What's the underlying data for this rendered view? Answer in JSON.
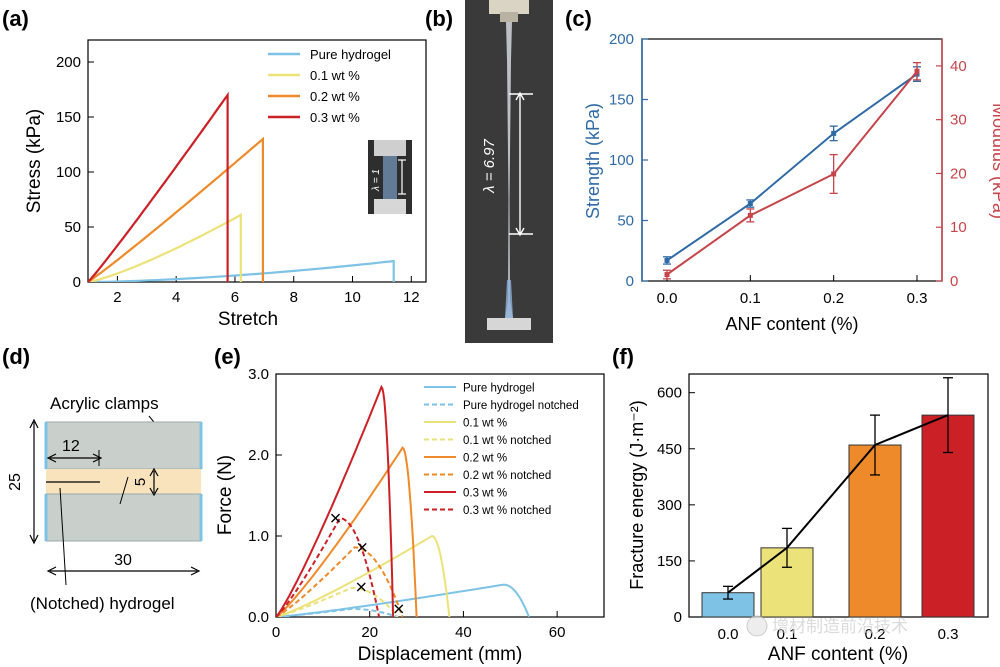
{
  "colors": {
    "pure": "#7ec3e6",
    "wt01": "#ece27a",
    "wt02": "#ef8a2a",
    "wt03": "#cc2027",
    "strength": "#2f6aa6",
    "modulus": "#c6454b",
    "clamp": "#c9d0cc",
    "gel": "#f8e3bd"
  },
  "panels": {
    "a": {
      "label": "(a)",
      "xlabel": "Stretch",
      "ylabel": "Stress (kPa)",
      "xticks": [
        "2",
        "4",
        "6",
        "8",
        "10",
        "12"
      ],
      "yticks": [
        "0",
        "50",
        "100",
        "150",
        "200"
      ],
      "legend": [
        "Pure hydrogel",
        "0.1 wt %",
        "0.2 wt %",
        "0.3 wt %"
      ],
      "inset_text": "λ = 1"
    },
    "b": {
      "label": "(b)",
      "stretch_text": "λ = 6.97"
    },
    "c": {
      "label": "(c)",
      "xlabel": "ANF content (%)",
      "ylabel_left": "Strength (kPa)",
      "ylabel_right": "Modulus (kPa)",
      "xticks": [
        "0.0",
        "0.1",
        "0.2",
        "0.3"
      ],
      "yticks_left": [
        "0",
        "50",
        "100",
        "150",
        "200"
      ],
      "yticks_right": [
        "0",
        "10",
        "20",
        "30",
        "40"
      ]
    },
    "d": {
      "label": "(d)",
      "clamp_label": "Acrylic clamps",
      "gel_label": "(Notched) hydrogel",
      "dim_25": "25",
      "dim_12": "12",
      "dim_5": "5",
      "dim_30": "30"
    },
    "e": {
      "label": "(e)",
      "xlabel": "Displacement (mm)",
      "ylabel": "Force (N)",
      "xticks": [
        "0",
        "20",
        "40",
        "60"
      ],
      "yticks": [
        "0.0",
        "1.0",
        "2.0",
        "3.0"
      ],
      "legend": [
        "Pure hydrogel",
        "Pure hydrogel notched",
        "0.1 wt %",
        "0.1 wt % notched",
        "0.2 wt %",
        "0.2 wt % notched",
        "0.3 wt %",
        "0.3 wt % notched"
      ]
    },
    "f": {
      "label": "(f)",
      "xlabel": "ANF content (%)",
      "ylabel": "Fracture energy (J·m⁻²)",
      "xticks": [
        "0.0",
        "0.1",
        "0.2",
        "0.3"
      ],
      "yticks": [
        "0",
        "150",
        "300",
        "450",
        "600"
      ],
      "watermark": "增材制造前沿技术"
    }
  },
  "chart_data": [
    {
      "panel": "a",
      "type": "line",
      "xlabel": "Stretch",
      "ylabel": "Stress (kPa)",
      "xlim": [
        1,
        12.5
      ],
      "ylim": [
        0,
        220
      ],
      "series": [
        {
          "name": "Pure hydrogel",
          "fracture_stretch": 11.4,
          "peak_stress": 19
        },
        {
          "name": "0.1 wt %",
          "fracture_stretch": 6.2,
          "peak_stress": 61
        },
        {
          "name": "0.2 wt %",
          "fracture_stretch": 6.95,
          "peak_stress": 130
        },
        {
          "name": "0.3 wt %",
          "fracture_stretch": 5.75,
          "peak_stress": 170
        }
      ]
    },
    {
      "panel": "c",
      "type": "line",
      "xlabel": "ANF content (%)",
      "ylabel": "Strength (kPa)",
      "ylabel_right": "Modulus (kPa)",
      "x": [
        0.0,
        0.1,
        0.2,
        0.3
      ],
      "xlim": [
        -0.03,
        0.33
      ],
      "ylim": [
        0,
        200
      ],
      "ylim_right": [
        0,
        45
      ],
      "series": [
        {
          "name": "Strength (kPa)",
          "axis": "left",
          "values": [
            17,
            64,
            122,
            171
          ],
          "errors": [
            3,
            3,
            6,
            6
          ]
        },
        {
          "name": "Modulus (kPa)",
          "axis": "right",
          "values": [
            1.2,
            12.2,
            19.9,
            39.0
          ],
          "errors": [
            0.8,
            1.2,
            3.6,
            1.6
          ]
        }
      ]
    },
    {
      "panel": "e",
      "type": "line",
      "xlabel": "Displacement (mm)",
      "ylabel": "Force (N)",
      "xlim": [
        0,
        70
      ],
      "ylim": [
        0,
        3.0
      ],
      "series": [
        {
          "name": "Pure hydrogel",
          "peak_force": 0.4,
          "fracture_displacement": 54
        },
        {
          "name": "Pure hydrogel notched",
          "peak_force": 0.1,
          "fracture_displacement": 26
        },
        {
          "name": "0.1 wt %",
          "peak_force": 1.0,
          "fracture_displacement": 37
        },
        {
          "name": "0.1 wt % notched",
          "peak_force": 0.36,
          "fracture_displacement": 26
        },
        {
          "name": "0.2 wt %",
          "peak_force": 2.09,
          "fracture_displacement": 30
        },
        {
          "name": "0.2 wt % notched",
          "peak_force": 0.86,
          "fracture_displacement": 27
        },
        {
          "name": "0.3 wt %",
          "peak_force": 2.84,
          "fracture_displacement": 25
        },
        {
          "name": "0.3 wt % notched",
          "peak_force": 1.22,
          "fracture_displacement": 22
        }
      ],
      "crosses": [
        [
          12.7,
          1.22
        ],
        [
          18.4,
          0.86
        ],
        [
          18.2,
          0.37
        ],
        [
          26.2,
          0.1
        ]
      ]
    },
    {
      "panel": "f",
      "type": "bar",
      "xlabel": "ANF content (%)",
      "ylabel": "Fracture energy (J·m⁻²)",
      "categories": [
        "0.0",
        "0.1",
        "0.2",
        "0.3"
      ],
      "values": [
        65,
        185,
        460,
        540
      ],
      "errors": [
        17,
        52,
        80,
        100
      ],
      "ylim": [
        0,
        650
      ]
    }
  ]
}
